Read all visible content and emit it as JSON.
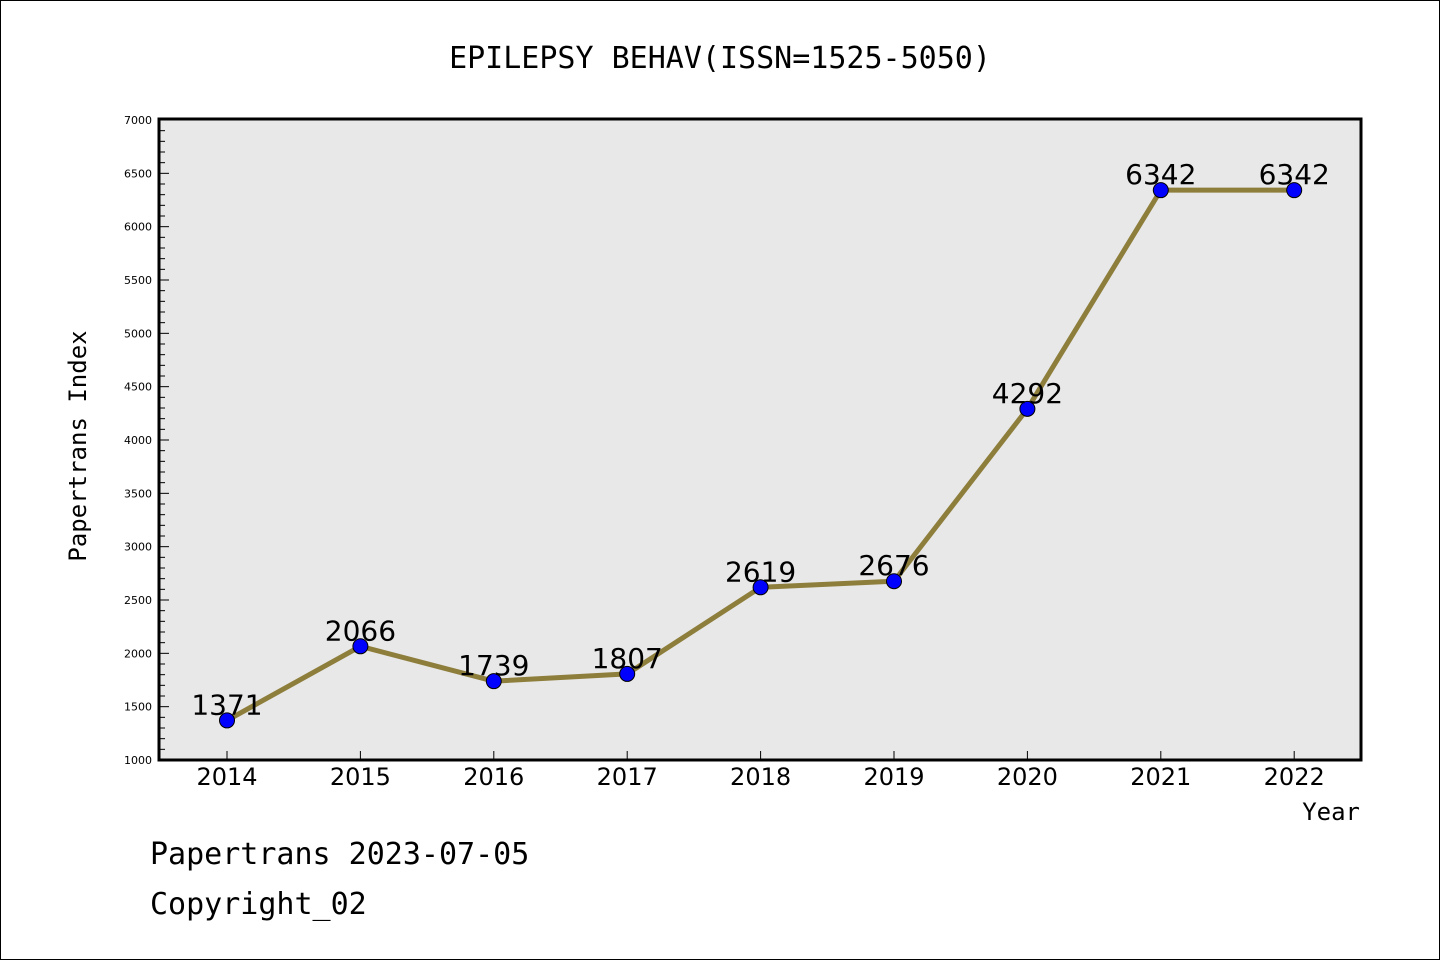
{
  "chart_data": {
    "type": "line",
    "title": "EPILEPSY BEHAV(ISSN=1525-5050)",
    "xlabel": "Year",
    "ylabel": "Papertrans Index",
    "categories": [
      "2014",
      "2015",
      "2016",
      "2017",
      "2018",
      "2019",
      "2020",
      "2021",
      "2022"
    ],
    "values": [
      1371,
      2066,
      1739,
      1807,
      2619,
      2676,
      4292,
      6342,
      6342
    ],
    "ylim": [
      1000,
      7000
    ],
    "y_ticks": [
      "1000",
      "1500",
      "2000",
      "2500",
      "3000",
      "3500",
      "4000",
      "4500",
      "5000",
      "5500",
      "6000",
      "6500",
      "7000"
    ],
    "grid": false,
    "legend": "none",
    "colors": {
      "line": "#8e7e3c",
      "marker": "#0000ff",
      "plot_background": "#e8e8e8"
    }
  },
  "footer": {
    "date_line": "Papertrans 2023-07-05",
    "copyright_line": "Copyright_02"
  }
}
